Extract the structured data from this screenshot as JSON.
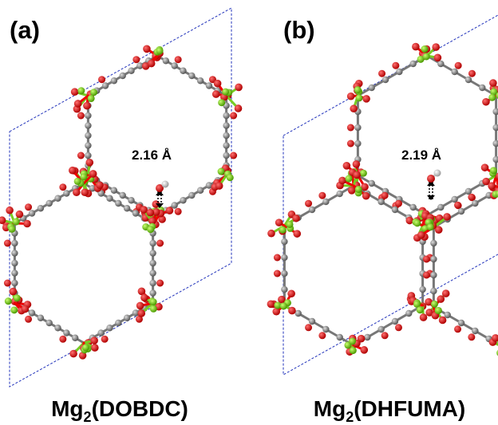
{
  "panels": [
    {
      "label": "(a)",
      "distance": "2.16 Å",
      "caption": {
        "base": "Mg",
        "subscript": "2",
        "rest": "(DOBDC)"
      }
    },
    {
      "label": "(b)",
      "distance": "2.19 Å",
      "caption": {
        "base": "Mg",
        "subscript": "2",
        "rest": "(DHFUMA)"
      }
    }
  ]
}
